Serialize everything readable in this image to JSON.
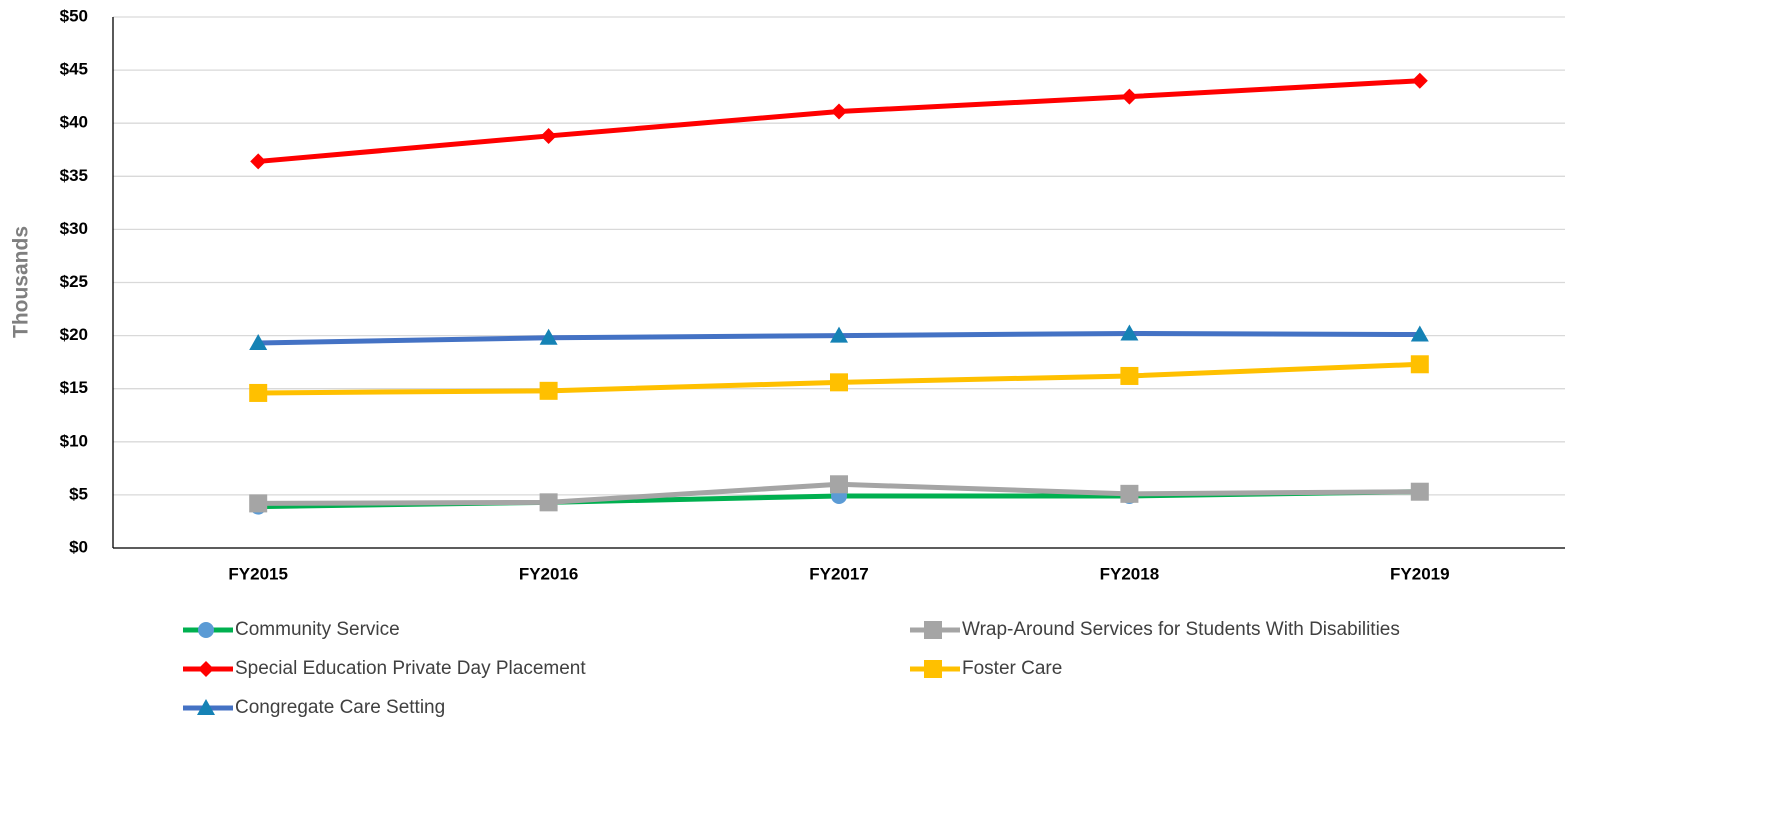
{
  "chart_data": {
    "type": "line",
    "y_label": "Thousands",
    "categories": [
      "FY2015",
      "FY2016",
      "FY2017",
      "FY2018",
      "FY2019"
    ],
    "ylim": [
      0,
      50
    ],
    "yticks": [
      {
        "value": 0,
        "label": "$0"
      },
      {
        "value": 5,
        "label": "$5"
      },
      {
        "value": 10,
        "label": "$10"
      },
      {
        "value": 15,
        "label": "$15"
      },
      {
        "value": 20,
        "label": "$20"
      },
      {
        "value": 25,
        "label": "$25"
      },
      {
        "value": 30,
        "label": "$30"
      },
      {
        "value": 35,
        "label": "$35"
      },
      {
        "value": 40,
        "label": "$40"
      },
      {
        "value": 45,
        "label": "$45"
      },
      {
        "value": 50,
        "label": "$50"
      }
    ],
    "grid": true,
    "legend": "bottom",
    "series": [
      {
        "name": "Community Service",
        "color": "#00b050",
        "marker": "circle",
        "marker_color": "#5b9bd5",
        "values": [
          3.9,
          4.3,
          4.9,
          4.9,
          5.3
        ]
      },
      {
        "name": "Wrap-Around Services for Students With Disabilities",
        "color": "#a5a5a5",
        "marker": "square",
        "marker_color": "#a5a5a5",
        "values": [
          4.2,
          4.3,
          6.0,
          5.1,
          5.3
        ]
      },
      {
        "name": "Special Education Private Day Placement",
        "color": "#ff0000",
        "marker": "diamond",
        "marker_color": "#ff0000",
        "values": [
          36.4,
          38.8,
          41.1,
          42.5,
          44.0
        ]
      },
      {
        "name": "Foster Care",
        "color": "#ffc000",
        "marker": "square",
        "marker_color": "#ffc000",
        "values": [
          14.6,
          14.8,
          15.6,
          16.2,
          17.3
        ]
      },
      {
        "name": "Congregate Care Setting",
        "color": "#4472c4",
        "marker": "triangle",
        "marker_color": "#1582b5",
        "values": [
          19.3,
          19.8,
          20.0,
          20.2,
          20.1
        ]
      }
    ]
  }
}
